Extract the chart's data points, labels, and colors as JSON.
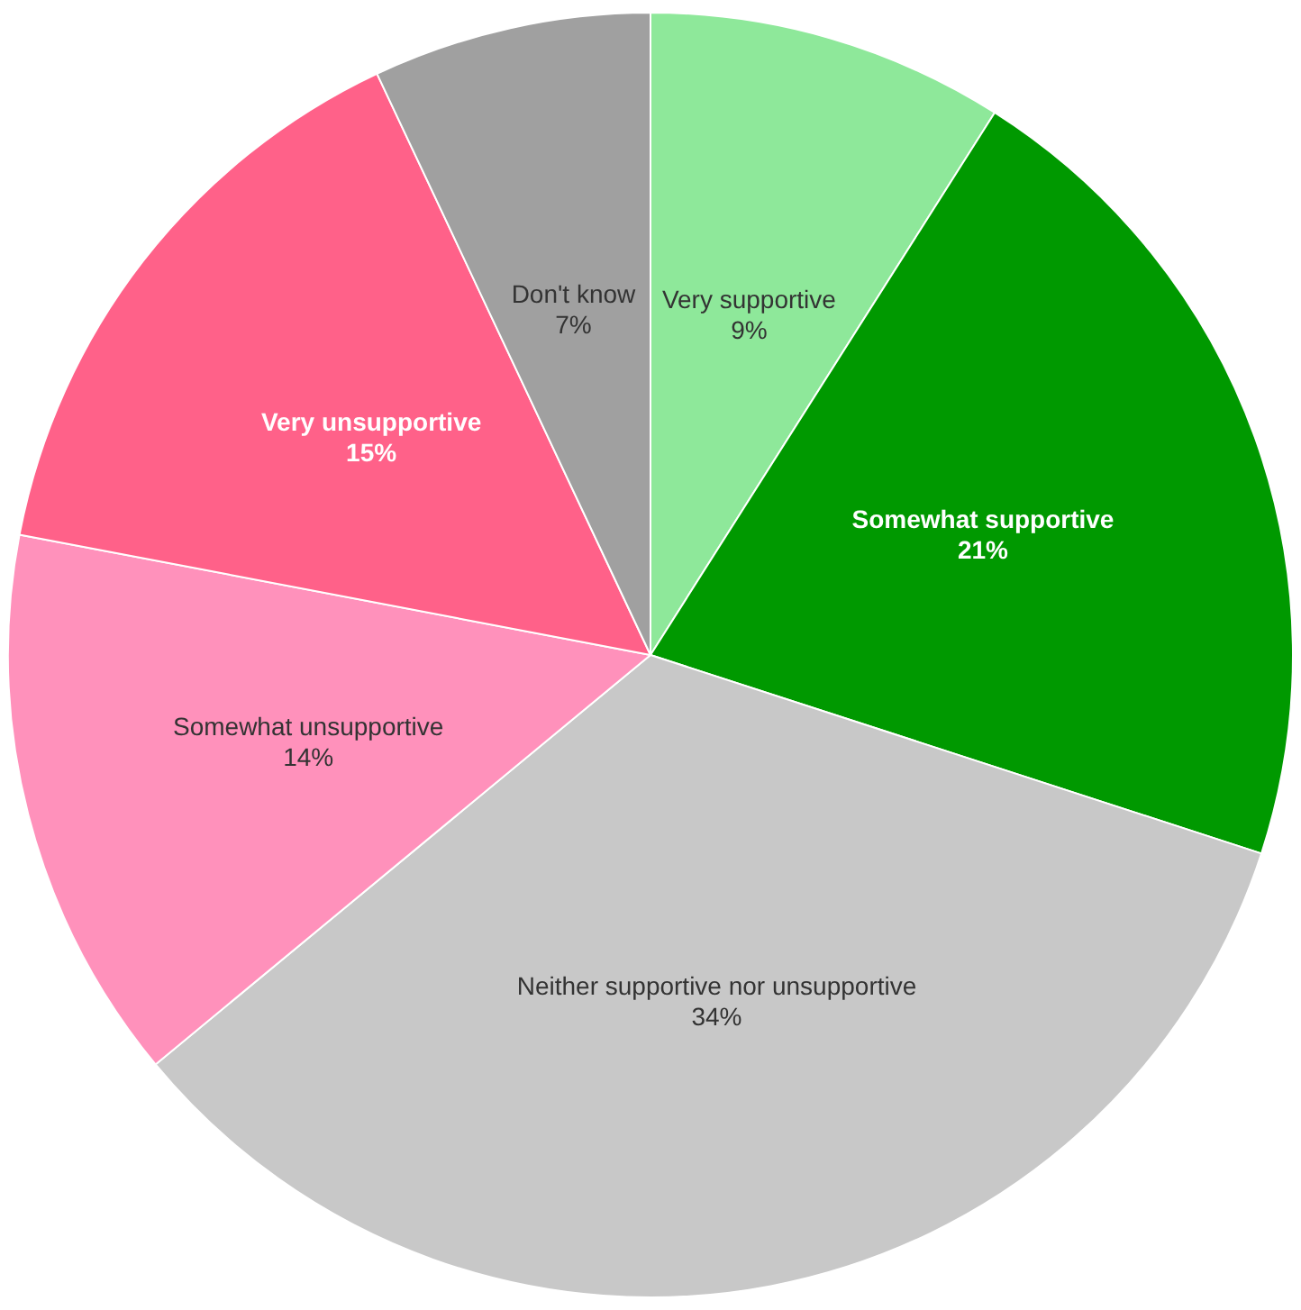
{
  "chart_data": {
    "type": "pie",
    "categories": [
      "Very supportive",
      "Somewhat supportive",
      "Neither supportive nor unsupportive",
      "Somewhat unsupportive",
      "Very unsupportive",
      "Don't know"
    ],
    "values": [
      9,
      21,
      34,
      14,
      15,
      7
    ],
    "value_labels": [
      "9%",
      "21%",
      "34%",
      "14%",
      "15%",
      "7%"
    ],
    "colors": [
      "#8ee89a",
      "#009900",
      "#c8c8c8",
      "#ff91bb",
      "#ff6189",
      "#a0a0a0"
    ],
    "legend": false
  }
}
